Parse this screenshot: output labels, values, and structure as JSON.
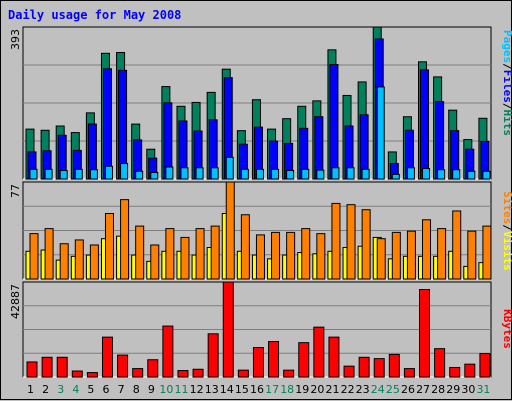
{
  "title": "Daily usage for May 2008",
  "colors": {
    "hits": "#00805c",
    "files": "#0000ff",
    "pages": "#00c0ff",
    "visits": "#ffff00",
    "sites": "#ff8000",
    "kbytes": "#ff0000",
    "weekday_label": "#000000",
    "weekend_label": "#00805c"
  },
  "panel_labels": {
    "top": [
      "Pages",
      "Files",
      "Hits"
    ],
    "middle": [
      "Sites",
      "Visits"
    ],
    "bottom": [
      "KBytes"
    ]
  },
  "chart_data": [
    {
      "type": "bar",
      "panel": "hits-files-pages",
      "y_max_label": "393",
      "categories": [
        "1",
        "2",
        "3",
        "4",
        "5",
        "6",
        "7",
        "8",
        "9",
        "10",
        "11",
        "12",
        "13",
        "14",
        "15",
        "16",
        "17",
        "18",
        "19",
        "20",
        "21",
        "22",
        "23",
        "24",
        "25",
        "26",
        "27",
        "28",
        "29",
        "30",
        "31"
      ],
      "weekend_days": [
        "3",
        "4",
        "10",
        "11",
        "17",
        "18",
        "24",
        "25",
        "31"
      ],
      "ylim": [
        0,
        393
      ],
      "series": [
        {
          "name": "Hits",
          "values": [
            129,
            126,
            137,
            120,
            171,
            325,
            327,
            142,
            77,
            239,
            188,
            198,
            224,
            284,
            125,
            205,
            129,
            156,
            188,
            202,
            334,
            216,
            251,
            393,
            70,
            161,
            303,
            264,
            178,
            102,
            157
          ]
        },
        {
          "name": "Files",
          "values": [
            70,
            73,
            113,
            74,
            142,
            285,
            281,
            101,
            54,
            197,
            150,
            124,
            153,
            262,
            90,
            134,
            98,
            92,
            131,
            161,
            296,
            137,
            166,
            362,
            40,
            126,
            282,
            200,
            125,
            77,
            97
          ]
        },
        {
          "name": "Pages",
          "values": [
            25,
            25,
            22,
            25,
            24,
            33,
            40,
            20,
            17,
            31,
            29,
            29,
            29,
            56,
            25,
            25,
            25,
            22,
            25,
            23,
            29,
            29,
            25,
            238,
            12,
            29,
            27,
            24,
            24,
            20,
            20
          ]
        }
      ]
    },
    {
      "type": "bar",
      "panel": "sites-visits",
      "y_max_label": "77",
      "categories": [
        "1",
        "2",
        "3",
        "4",
        "5",
        "6",
        "7",
        "8",
        "9",
        "10",
        "11",
        "12",
        "13",
        "14",
        "15",
        "16",
        "17",
        "18",
        "19",
        "20",
        "21",
        "22",
        "23",
        "24",
        "25",
        "26",
        "27",
        "28",
        "29",
        "30",
        "31"
      ],
      "ylim": [
        0,
        77
      ],
      "series": [
        {
          "name": "Sites",
          "values": [
            36,
            40,
            28,
            31,
            27,
            52,
            63,
            42,
            27,
            40,
            33,
            40,
            42,
            77,
            51,
            35,
            37,
            37,
            40,
            36,
            60,
            59,
            55,
            32,
            37,
            38,
            47,
            40,
            54,
            38,
            42
          ]
        },
        {
          "name": "Visits",
          "values": [
            22,
            23,
            15,
            18,
            19,
            32,
            34,
            19,
            14,
            22,
            22,
            19,
            25,
            52,
            22,
            19,
            16,
            19,
            21,
            20,
            22,
            25,
            26,
            33,
            16,
            18,
            18,
            18,
            22,
            10,
            13
          ]
        }
      ]
    },
    {
      "type": "bar",
      "panel": "kbytes",
      "y_max_label": "42887",
      "categories": [
        "1",
        "2",
        "3",
        "4",
        "5",
        "6",
        "7",
        "8",
        "9",
        "10",
        "11",
        "12",
        "13",
        "14",
        "15",
        "16",
        "17",
        "18",
        "19",
        "20",
        "21",
        "22",
        "23",
        "24",
        "25",
        "26",
        "27",
        "28",
        "29",
        "30",
        "31"
      ],
      "ylim": [
        0,
        42887
      ],
      "series": [
        {
          "name": "KBytes",
          "values": [
            6800,
            8900,
            8900,
            2700,
            2000,
            18000,
            9900,
            3800,
            7800,
            23000,
            2900,
            3500,
            19500,
            42887,
            3100,
            13300,
            16000,
            3100,
            15500,
            22500,
            18000,
            4900,
            8900,
            8300,
            10200,
            3800,
            39500,
            12800,
            4300,
            5800,
            10600
          ]
        }
      ]
    }
  ]
}
